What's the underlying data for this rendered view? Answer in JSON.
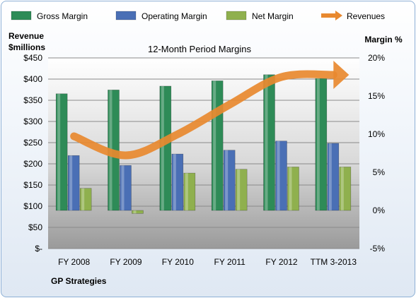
{
  "chart_data": {
    "type": "bar",
    "title": "12-Month Period Margins",
    "left_axis_label": [
      "Revenue",
      "$millions"
    ],
    "right_axis_label": "Margin %",
    "categories": [
      "FY 2008",
      "FY 2009",
      "FY 2010",
      "FY 2011",
      "FY 2012",
      "TTM 3-2013"
    ],
    "series": [
      {
        "name": "Gross Margin",
        "axis": "right",
        "unit": "percent",
        "color": "#2e8b57",
        "values": [
          15.3,
          15.8,
          16.3,
          17.0,
          17.8,
          17.3
        ]
      },
      {
        "name": "Operating Margin",
        "axis": "right",
        "unit": "percent",
        "color": "#4a6fb5",
        "values": [
          7.2,
          5.9,
          7.4,
          7.9,
          9.1,
          8.8
        ]
      },
      {
        "name": "Net Margin",
        "axis": "right",
        "unit": "percent",
        "color": "#8fb04e",
        "values": [
          2.9,
          -0.4,
          4.9,
          5.4,
          5.7,
          5.7
        ]
      },
      {
        "name": "Revenues",
        "axis": "left",
        "unit": "$millions",
        "color": "#e8892f",
        "type": "line",
        "values": [
          265,
          220,
          270,
          340,
          405,
          410
        ]
      }
    ],
    "left_axis": {
      "min": 0,
      "max": 450,
      "step": 50,
      "ticks": [
        "$-",
        "$50",
        "$100",
        "$150",
        "$200",
        "$250",
        "$300",
        "$350",
        "$400",
        "$450"
      ]
    },
    "right_axis": {
      "min": -5,
      "max": 20,
      "step": 5,
      "ticks": [
        "-5%",
        "0%",
        "5%",
        "10%",
        "15%",
        "20%"
      ]
    },
    "legend_position": "top",
    "grid": true
  },
  "footer": {
    "company": "GP Strategies"
  }
}
